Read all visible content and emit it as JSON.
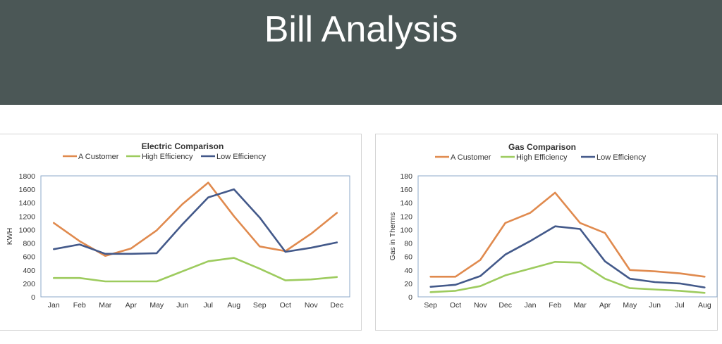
{
  "page": {
    "title": "Bill Analysis"
  },
  "colors": {
    "header_bg": "#4b5756",
    "a_customer": "#e08a4e",
    "high_efficiency": "#9dcb5e",
    "low_efficiency": "#43598a"
  },
  "chart_data": [
    {
      "id": "electric",
      "type": "line",
      "title": "Electric Comparison",
      "xlabel": "",
      "ylabel": "KWH",
      "categories": [
        "Jan",
        "Feb",
        "Mar",
        "Apr",
        "May",
        "Jun",
        "Jul",
        "Aug",
        "Sep",
        "Oct",
        "Nov",
        "Dec"
      ],
      "ylim": [
        0,
        1800
      ],
      "yticks": [
        0,
        200,
        400,
        600,
        800,
        1000,
        1200,
        1400,
        1600,
        1800
      ],
      "grid": false,
      "legend": "top",
      "series": [
        {
          "name": "A Customer",
          "color": "#e08a4e",
          "values": [
            1100,
            830,
            610,
            720,
            990,
            1380,
            1700,
            1200,
            750,
            680,
            940,
            1250
          ]
        },
        {
          "name": "High Efficiency",
          "color": "#9dcb5e",
          "values": [
            280,
            280,
            230,
            230,
            230,
            380,
            530,
            580,
            420,
            245,
            260,
            295
          ]
        },
        {
          "name": "Low Efficiency",
          "color": "#43598a",
          "values": [
            710,
            780,
            640,
            640,
            650,
            1080,
            1480,
            1600,
            1180,
            670,
            730,
            810
          ]
        }
      ]
    },
    {
      "id": "gas",
      "type": "line",
      "title": "Gas Comparison",
      "xlabel": "",
      "ylabel": "Gas in Therms",
      "categories": [
        "Sep",
        "Oct",
        "Nov",
        "Dec",
        "Jan",
        "Feb",
        "Mar",
        "Apr",
        "May",
        "Jun",
        "Jul",
        "Aug"
      ],
      "ylim": [
        0,
        180
      ],
      "yticks": [
        0,
        20,
        40,
        60,
        80,
        100,
        120,
        140,
        160,
        180
      ],
      "grid": false,
      "legend": "top",
      "series": [
        {
          "name": "A Customer",
          "color": "#e08a4e",
          "values": [
            30,
            30,
            55,
            110,
            125,
            155,
            110,
            95,
            40,
            38,
            35,
            30
          ]
        },
        {
          "name": "High Efficiency",
          "color": "#9dcb5e",
          "values": [
            7,
            9,
            16,
            32,
            42,
            52,
            51,
            27,
            13,
            11,
            9,
            6
          ]
        },
        {
          "name": "Low Efficiency",
          "color": "#43598a",
          "values": [
            15,
            18,
            31,
            63,
            83,
            105,
            101,
            53,
            27,
            22,
            20,
            14
          ]
        }
      ]
    }
  ]
}
